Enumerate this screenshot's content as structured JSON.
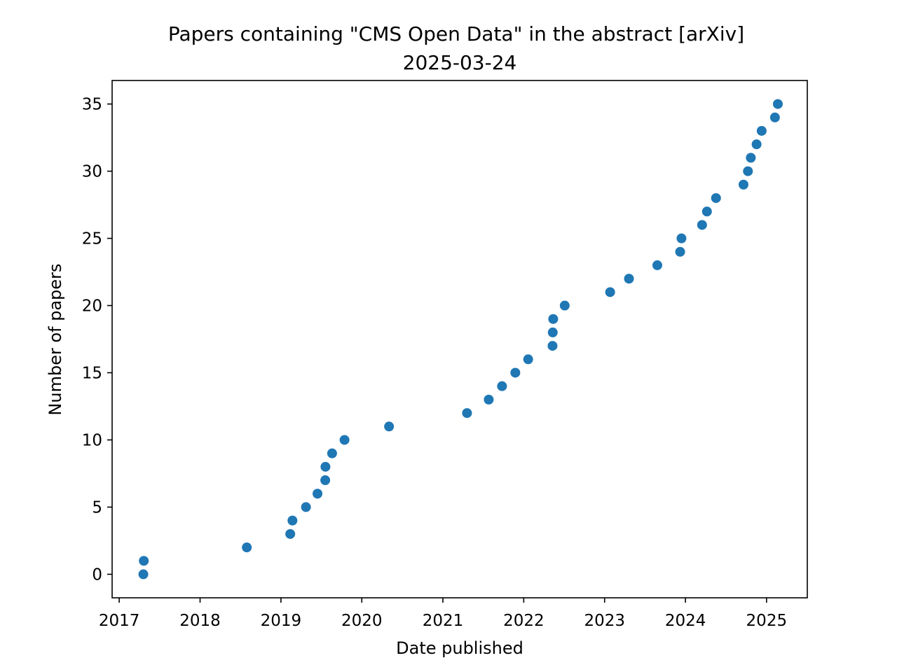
{
  "chart_data": {
    "type": "scatter",
    "title": "Papers containing \"CMS Open Data\" in the abstract [arXiv]",
    "subtitle": "2025-03-24",
    "xlabel": "Date published",
    "ylabel": "Number of papers",
    "x_axis_type": "date",
    "xlim": [
      "2016-11-30",
      "2025-07-04"
    ],
    "ylim": [
      -1.75,
      36.75
    ],
    "x_ticks": [
      "2017",
      "2018",
      "2019",
      "2020",
      "2021",
      "2022",
      "2023",
      "2024",
      "2025"
    ],
    "y_ticks": [
      0,
      5,
      10,
      15,
      20,
      25,
      30,
      35
    ],
    "grid": false,
    "legend": false,
    "marker_color": "#1f77b4",
    "series": [
      {
        "points": [
          {
            "x": "2017-04-20",
            "y": 0
          },
          {
            "x": "2017-04-22",
            "y": 1
          },
          {
            "x": "2018-07-31",
            "y": 2
          },
          {
            "x": "2019-02-12",
            "y": 3
          },
          {
            "x": "2019-02-22",
            "y": 4
          },
          {
            "x": "2019-04-24",
            "y": 5
          },
          {
            "x": "2019-06-15",
            "y": 6
          },
          {
            "x": "2019-07-20",
            "y": 7
          },
          {
            "x": "2019-07-21",
            "y": 8
          },
          {
            "x": "2019-08-20",
            "y": 9
          },
          {
            "x": "2019-10-15",
            "y": 10
          },
          {
            "x": "2020-05-03",
            "y": 11
          },
          {
            "x": "2021-04-20",
            "y": 12
          },
          {
            "x": "2021-07-27",
            "y": 13
          },
          {
            "x": "2021-09-25",
            "y": 14
          },
          {
            "x": "2021-11-24",
            "y": 15
          },
          {
            "x": "2022-01-21",
            "y": 16
          },
          {
            "x": "2022-05-11",
            "y": 17
          },
          {
            "x": "2022-05-12",
            "y": 18
          },
          {
            "x": "2022-05-14",
            "y": 19
          },
          {
            "x": "2022-07-05",
            "y": 20
          },
          {
            "x": "2023-01-26",
            "y": 21
          },
          {
            "x": "2023-04-21",
            "y": 22
          },
          {
            "x": "2023-08-27",
            "y": 23
          },
          {
            "x": "2023-12-08",
            "y": 24
          },
          {
            "x": "2023-12-14",
            "y": 25
          },
          {
            "x": "2024-03-16",
            "y": 26
          },
          {
            "x": "2024-04-07",
            "y": 27
          },
          {
            "x": "2024-05-18",
            "y": 28
          },
          {
            "x": "2024-09-19",
            "y": 29
          },
          {
            "x": "2024-10-09",
            "y": 30
          },
          {
            "x": "2024-10-22",
            "y": 31
          },
          {
            "x": "2024-11-17",
            "y": 32
          },
          {
            "x": "2024-12-10",
            "y": 33
          },
          {
            "x": "2025-02-08",
            "y": 34
          },
          {
            "x": "2025-02-21",
            "y": 35
          }
        ]
      }
    ]
  }
}
